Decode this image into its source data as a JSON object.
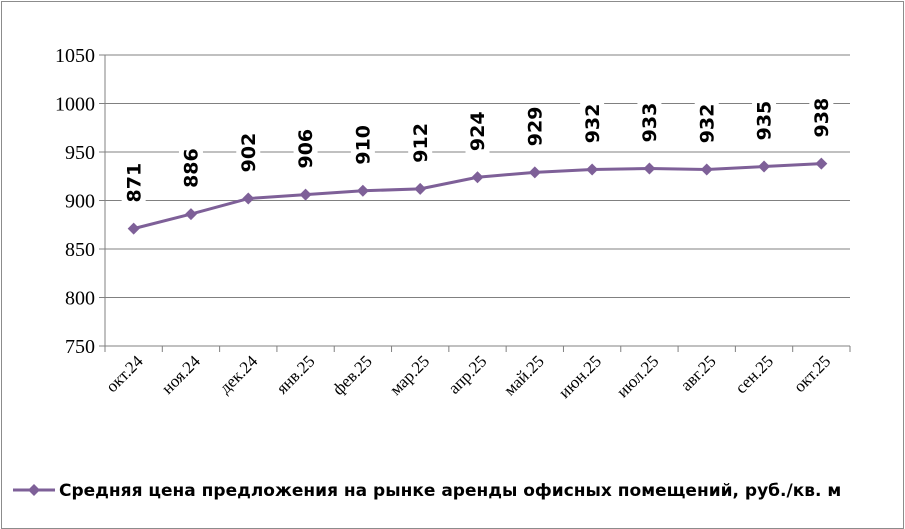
{
  "chart_data": {
    "type": "line",
    "categories": [
      "окт.24",
      "ноя.24",
      "дек.24",
      "янв.25",
      "фев.25",
      "мар.25",
      "апр.25",
      "май.25",
      "июн.25",
      "июл.25",
      "авг.25",
      "сен.25",
      "окт.25"
    ],
    "series": [
      {
        "name": "Средняя цена предложения на рынке аренды офисных помещений,  руб./кв. м",
        "values": [
          871,
          886,
          902,
          906,
          910,
          912,
          924,
          929,
          932,
          933,
          932,
          935,
          938
        ],
        "data_labels": [
          "871",
          "886",
          "902",
          "906",
          "910",
          "912",
          "924",
          "929",
          "932",
          "933",
          "932",
          "935",
          "938"
        ],
        "color": "#7e6098"
      }
    ],
    "yticks": [
      "750",
      "800",
      "850",
      "900",
      "950",
      "1000",
      "1050"
    ],
    "ylim": [
      750,
      1050
    ],
    "grid": true,
    "legend": "bottom-left"
  }
}
